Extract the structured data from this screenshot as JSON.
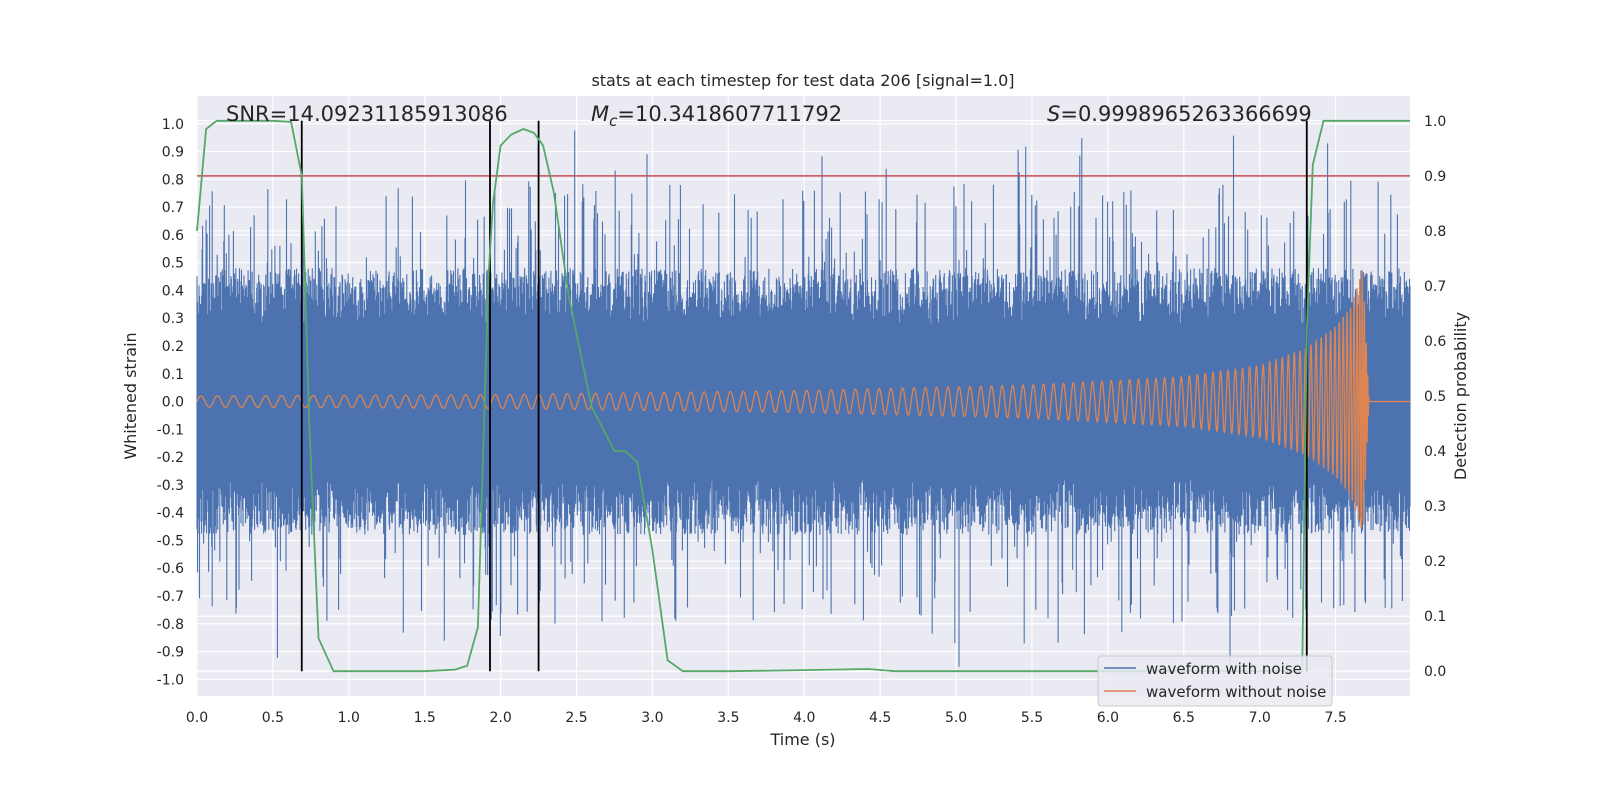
{
  "chart_data": {
    "type": "line",
    "title": "stats at each timestep for test data 206 [signal=1.0]",
    "xlabel": "Time (s)",
    "ylabel_left": "Whitened strain",
    "ylabel_right": "Detection probability",
    "xlim": [
      0.0,
      7.99
    ],
    "ylim_left": [
      -1.06,
      1.1
    ],
    "ylim_right": [
      -0.045,
      1.045
    ],
    "x_ticks": [
      "0.0",
      "0.5",
      "1.0",
      "1.5",
      "2.0",
      "2.5",
      "3.0",
      "3.5",
      "4.0",
      "4.5",
      "5.0",
      "5.5",
      "6.0",
      "6.5",
      "7.0",
      "7.5"
    ],
    "y_ticks_left": [
      "1.0",
      "0.9",
      "0.8",
      "0.7",
      "0.6",
      "0.5",
      "0.4",
      "0.3",
      "0.2",
      "0.1",
      "0.0",
      "-0.1",
      "-0.2",
      "-0.3",
      "-0.4",
      "-0.5",
      "-0.6",
      "-0.7",
      "-0.8",
      "-0.9",
      "-1.0"
    ],
    "y_ticks_right": [
      "1.0",
      "0.9",
      "0.8",
      "0.7",
      "0.6",
      "0.5",
      "0.4",
      "0.3",
      "0.2",
      "0.1",
      "0.0"
    ],
    "annotations": {
      "snr": "SNR=14.09231185913086",
      "mc_symbol": "M",
      "mc_sub": "c",
      "mc_value": "=10.3418607711792",
      "s_symbol": "S",
      "s_value": "=0.9998965263366699"
    },
    "threshold_line": {
      "axis": "right",
      "value": 0.9,
      "color": "#c44e52"
    },
    "vertical_lines": [
      0.69,
      1.93,
      2.25,
      7.31
    ],
    "series": [
      {
        "name": "waveform with noise",
        "color": "#4c72b0",
        "axis": "left",
        "description": "dense noisy strain, core band about -0.45 to 0.45, spikes to about +/-0.9"
      },
      {
        "name": "waveform without noise",
        "color": "#dd8452",
        "axis": "left",
        "description": "chirp signal, amplitude grows from ~0.02 to ~0.48, ends at 7.72 s",
        "amplitude_points": [
          [
            0.0,
            0.02
          ],
          [
            2.0,
            0.025
          ],
          [
            4.0,
            0.04
          ],
          [
            5.5,
            0.06
          ],
          [
            6.5,
            0.09
          ],
          [
            7.0,
            0.13
          ],
          [
            7.3,
            0.19
          ],
          [
            7.5,
            0.27
          ],
          [
            7.6,
            0.34
          ],
          [
            7.68,
            0.48
          ],
          [
            7.72,
            0.0
          ]
        ]
      },
      {
        "name": "detection probability",
        "color": "#55a868",
        "axis": "right",
        "x": [
          0.0,
          0.06,
          0.13,
          0.3,
          0.5,
          0.62,
          0.69,
          0.74,
          0.8,
          0.9,
          1.0,
          1.5,
          1.7,
          1.78,
          1.85,
          1.92,
          1.95,
          2.0,
          2.07,
          2.15,
          2.22,
          2.28,
          2.35,
          2.45,
          2.6,
          2.75,
          2.82,
          2.9,
          3.0,
          3.1,
          3.2,
          3.5,
          4.0,
          4.42,
          4.6,
          5.0,
          5.5,
          6.0,
          7.28,
          7.31,
          7.35,
          7.42,
          7.5,
          7.99
        ],
        "y": [
          0.8,
          0.985,
          1.0,
          1.0,
          1.0,
          0.998,
          0.9,
          0.45,
          0.06,
          0.0,
          0.0,
          0.0,
          0.003,
          0.01,
          0.08,
          0.72,
          0.85,
          0.955,
          0.975,
          0.985,
          0.978,
          0.955,
          0.87,
          0.68,
          0.48,
          0.4,
          0.4,
          0.38,
          0.22,
          0.02,
          0.0,
          0.0,
          0.002,
          0.004,
          0.0,
          0.0,
          0.0,
          0.0,
          0.0,
          0.62,
          0.92,
          1.0,
          1.0,
          1.0
        ]
      }
    ],
    "legend": {
      "position": "lower-right",
      "entries": [
        {
          "label": "waveform with noise",
          "color": "#4c72b0"
        },
        {
          "label": "waveform without noise",
          "color": "#dd8452"
        }
      ]
    }
  }
}
